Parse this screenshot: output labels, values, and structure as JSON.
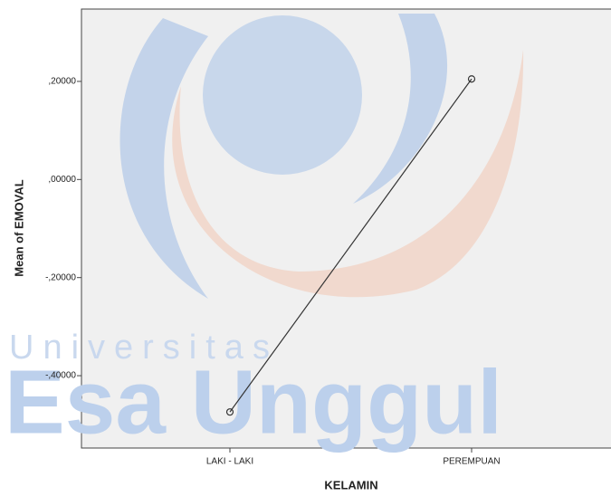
{
  "chart_data": {
    "type": "line",
    "y_label": "Mean of EMOVAL",
    "x_label": "KELAMIN",
    "categories": [
      "LAKI - LAKI",
      "PEREMPUAN"
    ],
    "series": [
      {
        "name": "EMOVAL",
        "color": "#333333",
        "values": [
          -0.474,
          0.205
        ]
      }
    ],
    "ylim": [
      -0.5475,
      0.3475
    ],
    "yticks": [
      {
        "value": -0.4,
        "label": "-,40000"
      },
      {
        "value": -0.2,
        "label": "-,20000"
      },
      {
        "value": 0,
        "label": ",00000"
      },
      {
        "value": 0.2,
        "label": ",20000"
      }
    ],
    "watermark": [
      "Universitas",
      "Esa Unggul"
    ]
  }
}
